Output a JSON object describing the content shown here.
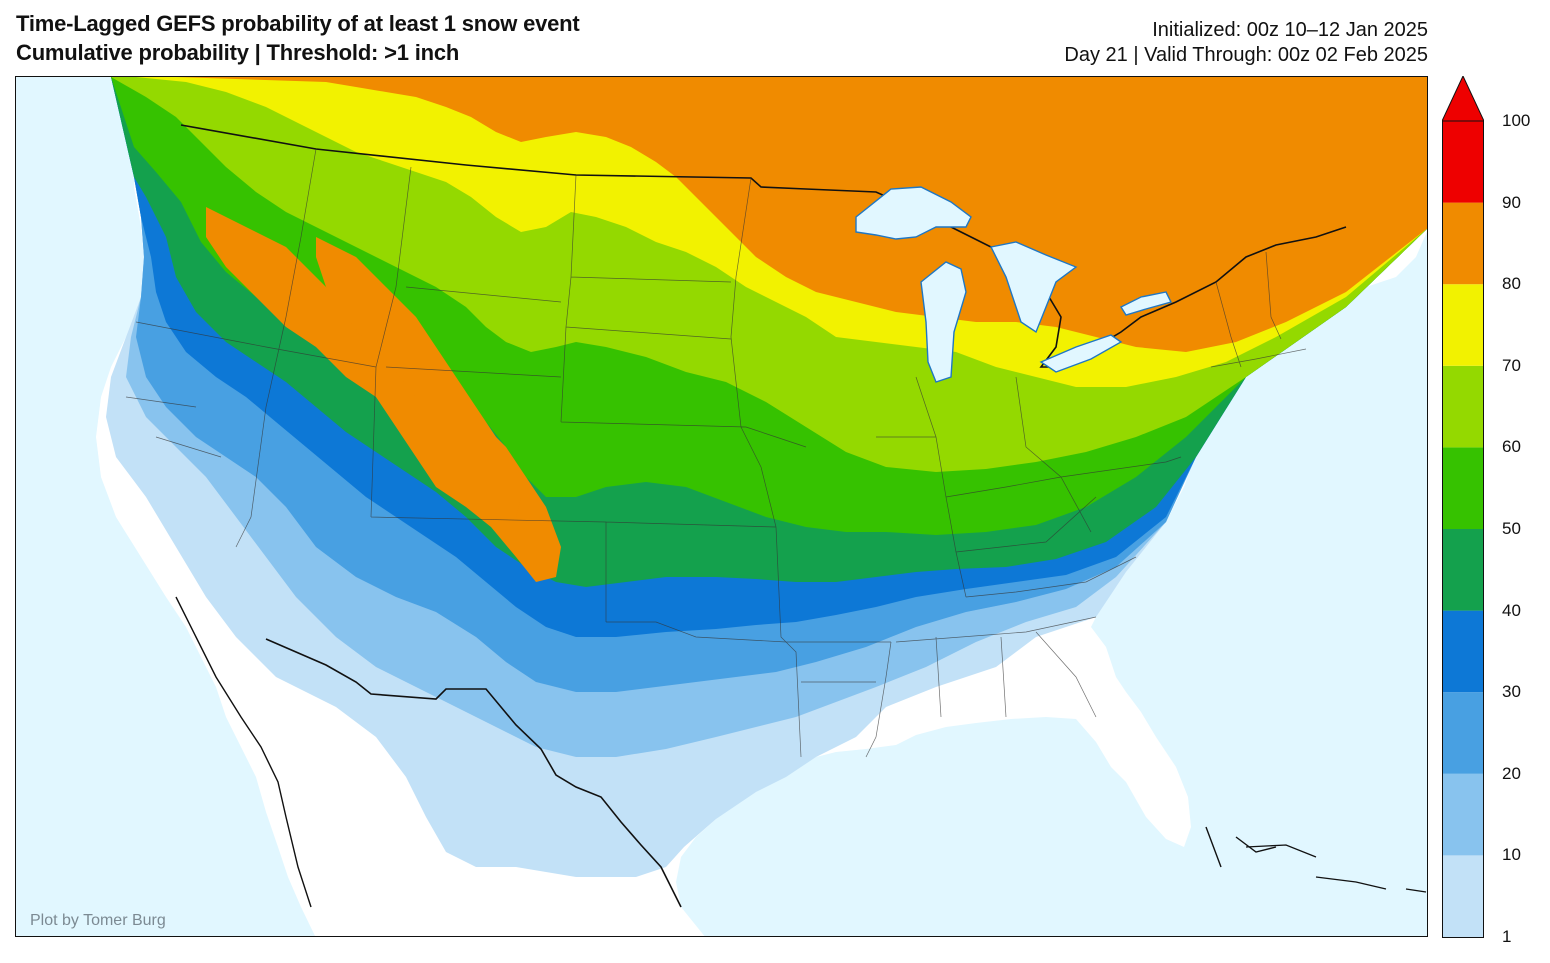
{
  "header": {
    "title": "Time-Lagged GEFS probability of at least 1 snow event",
    "subtitle": "Cumulative probability | Threshold: >1 inch",
    "initialized": "Initialized: 00z 10–12 Jan 2025",
    "valid": "Day 21 | Valid Through: 00z 02 Feb 2025"
  },
  "map": {
    "credit": "Plot by Tomer Burg",
    "water_color": "#e1f7ff",
    "land_color": "#ffffff"
  },
  "legend": {
    "ticks": [
      "1",
      "10",
      "20",
      "30",
      "40",
      "50",
      "60",
      "70",
      "80",
      "90",
      "100"
    ],
    "colors": [
      "#c2e1f7",
      "#88c3ee",
      "#48a0e2",
      "#0d78d6",
      "#14a14d",
      "#36c200",
      "#94d900",
      "#f2f200",
      "#f08b00",
      "#ee0000"
    ],
    "extend": "max"
  }
}
